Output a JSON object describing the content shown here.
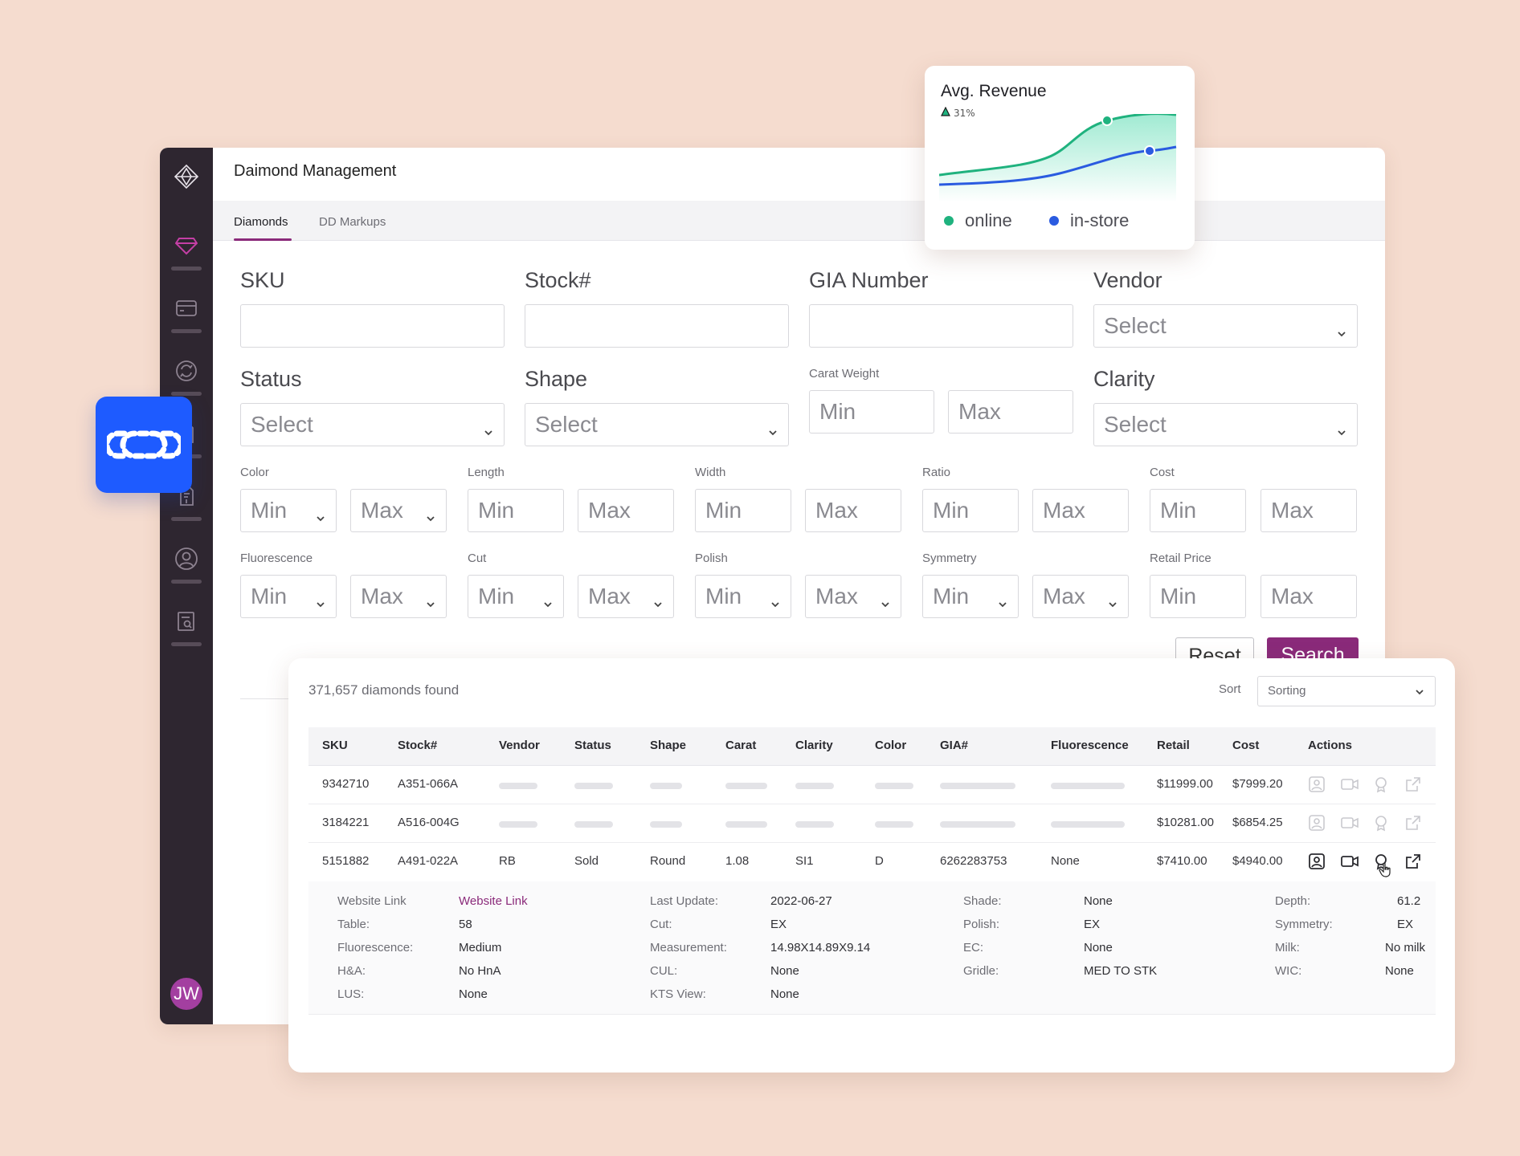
{
  "app": {
    "title": "Daimond Management",
    "avatar_initials": "JW"
  },
  "tabs": [
    {
      "label": "Diamonds",
      "active": true
    },
    {
      "label": "DD Markups",
      "active": false
    }
  ],
  "filters": {
    "sku": "SKU",
    "stock": "Stock#",
    "gia": "GIA Number",
    "vendor": "Vendor",
    "status": "Status",
    "shape": "Shape",
    "carat_weight": "Carat Weight",
    "clarity": "Clarity",
    "color": "Color",
    "length": "Length",
    "width": "Width",
    "ratio": "Ratio",
    "cost": "Cost",
    "fluorescence": "Fluorescence",
    "cut": "Cut",
    "polish": "Polish",
    "symmetry": "Symmetry",
    "retail_price": "Retail Price",
    "select_placeholder": "Select",
    "min_placeholder": "Min",
    "max_placeholder": "Max",
    "reset_label": "Reset",
    "search_label": "Search"
  },
  "revenue_card": {
    "title": "Avg. Revenue",
    "delta": "31%",
    "legend_online": "online",
    "legend_instore": "in-store",
    "colors": {
      "online": "#1fb27e",
      "instore": "#2a5be0"
    }
  },
  "results": {
    "count_text": "371,657 diamonds found",
    "sort_label": "Sort",
    "sort_value": "Sorting",
    "columns": [
      "SKU",
      "Stock#",
      "Vendor",
      "Status",
      "Shape",
      "Carat",
      "Clarity",
      "Color",
      "GIA#",
      "Fluorescence",
      "Retail",
      "Cost",
      "Actions"
    ],
    "rows": [
      {
        "sku": "9342710",
        "stock": "A351-066A",
        "retail": "$11999.00",
        "cost": "$7999.20"
      },
      {
        "sku": "3184221",
        "stock": "A516-004G",
        "retail": "$10281.00",
        "cost": "$6854.25"
      },
      {
        "sku": "5151882",
        "stock": "A491-022A",
        "vendor": "RB",
        "status": "Sold",
        "shape": "Round",
        "carat": "1.08",
        "clarity": "SI1",
        "color": "D",
        "gia": "6262283753",
        "fluorescence": "None",
        "retail": "$7410.00",
        "cost": "$4940.00"
      }
    ],
    "detail": {
      "website_link_key": "Website Link",
      "website_link_val": "Website Link",
      "table_key": "Table:",
      "table_val": "58",
      "fluor_key": "Fluorescence:",
      "fluor_val": "Medium",
      "ha_key": "H&A:",
      "ha_val": "No HnA",
      "lus_key": "LUS:",
      "lus_val": "None",
      "update_key": "Last Update:",
      "update_val": "2022-06-27",
      "cut_key": "Cut:",
      "cut_val": "EX",
      "meas_key": "Measurement:",
      "meas_val": "14.98X14.89X9.14",
      "cul_key": "CUL:",
      "cul_val": "None",
      "kts_key": "KTS View:",
      "kts_val": "None",
      "shade_key": "Shade:",
      "shade_val": "None",
      "polish_key": "Polish:",
      "polish_val": "EX",
      "ec_key": "EC:",
      "ec_val": "None",
      "gridle_key": "Gridle:",
      "gridle_val": "MED TO STK",
      "depth_key": "Depth:",
      "depth_val": "61.2",
      "sym_key": "Symmetry:",
      "sym_val": "EX",
      "milk_key": "Milk:",
      "milk_val": "No milk",
      "wic_key": "WIC:",
      "wic_val": "None"
    }
  },
  "icons": [
    "brand-diamond-icon",
    "diamond-icon",
    "card-icon",
    "sync-icon",
    "document-icon",
    "user-circle-icon",
    "report-search-icon",
    "chain-link-icon",
    "chevron-down-icon",
    "image-icon",
    "video-icon",
    "certificate-icon",
    "external-link-icon",
    "cursor-hand-icon"
  ]
}
